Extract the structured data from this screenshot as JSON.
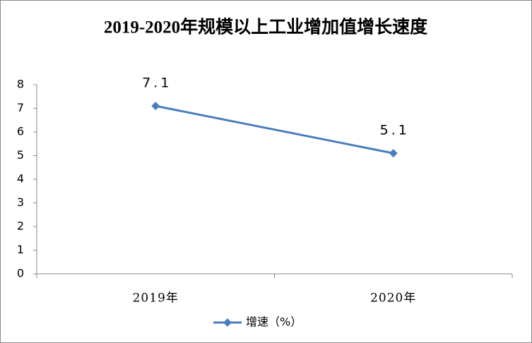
{
  "chart_data": {
    "type": "line",
    "title": "2019-2020年规模以上工业增加值增长速度",
    "categories": [
      "2019年",
      "2020年"
    ],
    "series": [
      {
        "name": "增速（%）",
        "color": "#4a7ebb",
        "values": [
          7.1,
          5.1
        ]
      }
    ],
    "ylim": [
      0,
      8
    ],
    "yticks": [
      0,
      1,
      2,
      3,
      4,
      5,
      6,
      7,
      8
    ],
    "grid": false,
    "legend": "bottom"
  }
}
